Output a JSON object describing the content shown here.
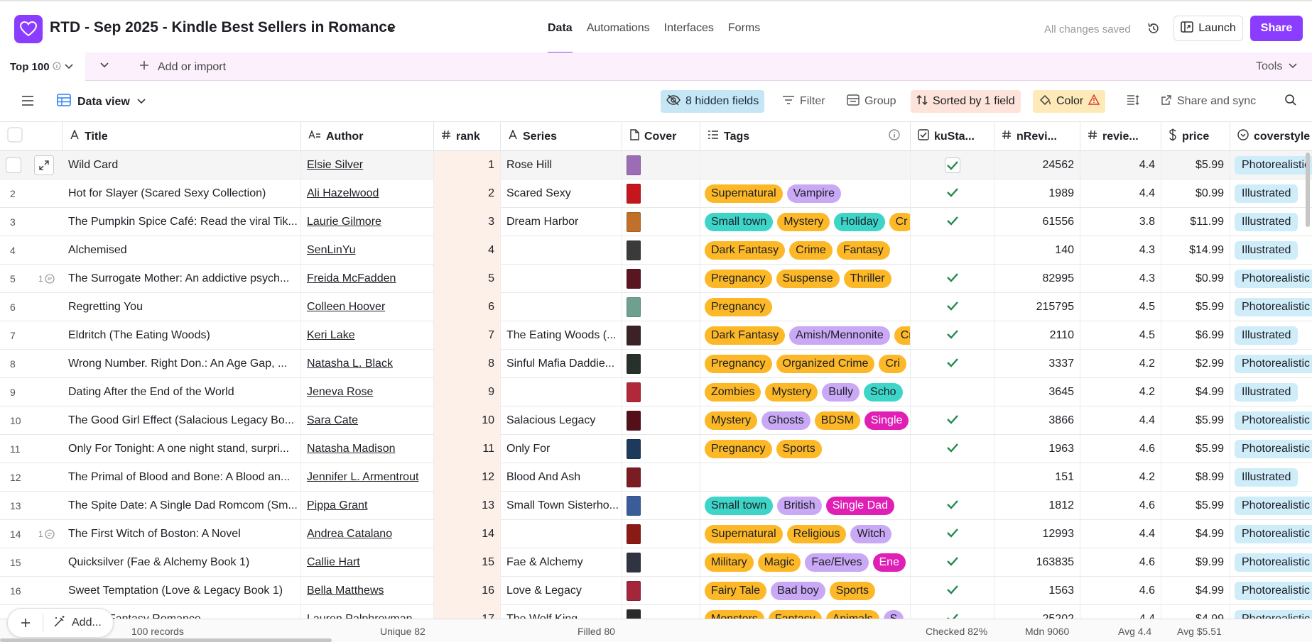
{
  "header": {
    "title": "RTD - Sep 2025 - Kindle Best Sellers in Romance",
    "nav": [
      "Data",
      "Automations",
      "Interfaces",
      "Forms"
    ],
    "saved": "All changes saved",
    "launch": "Launch",
    "share": "Share"
  },
  "tablebar": {
    "active_tab": "Top 100",
    "add_import": "Add or import",
    "tools": "Tools"
  },
  "viewbar": {
    "view_name": "Data view",
    "hidden": "8 hidden fields",
    "filter": "Filter",
    "group": "Group",
    "sorted": "Sorted by 1 field",
    "color": "Color",
    "share_sync": "Share and sync"
  },
  "columns": {
    "title": "Title",
    "author": "Author",
    "rank": "rank",
    "series": "Series",
    "cover": "Cover",
    "tags": "Tags",
    "ku": "kuSta...",
    "nrev": "nRevi...",
    "rev": "revie...",
    "price": "price",
    "style": "coverstyle"
  },
  "tag_colors": {
    "Supernatural": "#fcb826",
    "Vampire": "#c9a8f5",
    "Small town": "#3ed5c9",
    "Mystery": "#fcb826",
    "Holiday": "#3ed5c9",
    "Dark Fantasy": "#fcb826",
    "Crime": "#fcb826",
    "Fantasy": "#fcb826",
    "Pregnancy": "#fcb826",
    "Suspense": "#fcb826",
    "Thriller": "#fcb826",
    "Amish/Mennonite": "#c9a8f5",
    "Organized Crime": "#fcb826",
    "Cri": "#fcb826",
    "Zombies": "#fcb826",
    "Bully": "#c9a8f5",
    "Scho": "#3ed5c9",
    "Ghosts": "#c9a8f5",
    "BDSM": "#fcb826",
    "Single": "#e01fb5",
    "Sports": "#fcb826",
    "British": "#c9a8f5",
    "Single Dad": "#e01fb5",
    "Religious": "#fcb826",
    "Witch": "#c9a8f5",
    "Military": "#fcb826",
    "Magic": "#fcb826",
    "Fae/Elves": "#c9a8f5",
    "Ene": "#e01fb5",
    "Fairy Tale": "#fcb826",
    "Bad boy": "#c9a8f5",
    "Monsters": "#fcb826",
    "Animals": "#fcb826",
    "S": "#c9a8f5",
    "Cr": "#fcb826"
  },
  "rows": [
    {
      "num": "",
      "title": "Wild Card",
      "author": "Elsie Silver",
      "rank": "1",
      "series": "Rose Hill",
      "cover": "#9c6cb4",
      "tags": [],
      "ku": true,
      "ku_box": true,
      "nrev": "24562",
      "rev": "4.4",
      "price": "$5.99",
      "style": "Photorealistic",
      "comment": ""
    },
    {
      "num": "2",
      "title": "Hot for Slayer (Scared Sexy Collection)",
      "author": "Ali Hazelwood",
      "rank": "2",
      "series": "Scared Sexy",
      "cover": "#c4161c",
      "tags": [
        "Supernatural",
        "Vampire"
      ],
      "ku": true,
      "nrev": "1989",
      "rev": "4.4",
      "price": "$0.99",
      "style": "Illustrated",
      "comment": ""
    },
    {
      "num": "3",
      "title": "The Pumpkin Spice Café: Read the viral Tik...",
      "author": "Laurie Gilmore",
      "rank": "3",
      "series": "Dream Harbor",
      "cover": "#c0702a",
      "tags": [
        "Small town",
        "Mystery",
        "Holiday",
        "Cr"
      ],
      "ku": true,
      "nrev": "61556",
      "rev": "3.8",
      "price": "$11.99",
      "style": "Illustrated",
      "comment": ""
    },
    {
      "num": "4",
      "title": "Alchemised",
      "author": "SenLinYu",
      "rank": "4",
      "series": "",
      "cover": "#3a3a3a",
      "tags": [
        "Dark Fantasy",
        "Crime",
        "Fantasy"
      ],
      "ku": false,
      "nrev": "140",
      "rev": "4.3",
      "price": "$14.99",
      "style": "Illustrated",
      "comment": ""
    },
    {
      "num": "5",
      "title": "The Surrogate Mother: An addictive psych...",
      "author": "Freida McFadden",
      "rank": "5",
      "series": "",
      "cover": "#5a1620",
      "tags": [
        "Pregnancy",
        "Suspense",
        "Thriller"
      ],
      "ku": true,
      "nrev": "82995",
      "rev": "4.3",
      "price": "$0.99",
      "style": "Photorealistic",
      "comment": "1"
    },
    {
      "num": "6",
      "title": "Regretting You",
      "author": "Colleen Hoover",
      "rank": "6",
      "series": "",
      "cover": "#6fa08f",
      "tags": [
        "Pregnancy"
      ],
      "ku": true,
      "nrev": "215795",
      "rev": "4.5",
      "price": "$5.99",
      "style": "Photorealistic",
      "comment": ""
    },
    {
      "num": "7",
      "title": "Eldritch (The Eating Woods)",
      "author": "Keri Lake",
      "rank": "7",
      "series": "The Eating Woods (...",
      "cover": "#3b2226",
      "tags": [
        "Dark Fantasy",
        "Amish/Mennonite",
        "Cr"
      ],
      "ku": true,
      "nrev": "2110",
      "rev": "4.5",
      "price": "$6.99",
      "style": "Illustrated",
      "comment": ""
    },
    {
      "num": "8",
      "title": "Wrong Number. Right Don.: An Age Gap, ...",
      "author": "Natasha L. Black",
      "rank": "8",
      "series": "Sinful Mafia Daddie...",
      "cover": "#27312a",
      "tags": [
        "Pregnancy",
        "Organized Crime",
        "Cri"
      ],
      "ku": true,
      "nrev": "3337",
      "rev": "4.2",
      "price": "$2.99",
      "style": "Photorealistic",
      "comment": ""
    },
    {
      "num": "9",
      "title": "Dating After the End of the World",
      "author": "Jeneva Rose",
      "rank": "9",
      "series": "",
      "cover": "#b0283a",
      "tags": [
        "Zombies",
        "Mystery",
        "Bully",
        "Scho"
      ],
      "ku": false,
      "nrev": "3645",
      "rev": "4.2",
      "price": "$4.99",
      "style": "Illustrated",
      "comment": ""
    },
    {
      "num": "10",
      "title": "The Good Girl Effect (Salacious Legacy Bo...",
      "author": "Sara Cate",
      "rank": "10",
      "series": "Salacious Legacy",
      "cover": "#541018",
      "tags": [
        "Mystery",
        "Ghosts",
        "BDSM",
        "Single"
      ],
      "ku": true,
      "nrev": "3866",
      "rev": "4.4",
      "price": "$5.99",
      "style": "Photorealistic",
      "comment": ""
    },
    {
      "num": "11",
      "title": "Only For Tonight: A one night stand, surpri...",
      "author": "Natasha Madison",
      "rank": "11",
      "series": "Only For",
      "cover": "#1e3a5a",
      "tags": [
        "Pregnancy",
        "Sports"
      ],
      "ku": true,
      "nrev": "1963",
      "rev": "4.6",
      "price": "$5.99",
      "style": "Photorealistic",
      "comment": ""
    },
    {
      "num": "12",
      "title": "The Primal of Blood and Bone: A Blood an...",
      "author": "Jennifer L. Armentrout",
      "rank": "12",
      "series": "Blood And Ash",
      "cover": "#7a1c22",
      "tags": [],
      "ku": false,
      "nrev": "151",
      "rev": "4.2",
      "price": "$8.99",
      "style": "Illustrated",
      "comment": ""
    },
    {
      "num": "13",
      "title": "The Spite Date: A Single Dad Romcom (Sm...",
      "author": "Pippa Grant",
      "rank": "13",
      "series": "Small Town Sisterho...",
      "cover": "#3a5d9a",
      "tags": [
        "Small town",
        "British",
        "Single Dad"
      ],
      "ku": true,
      "nrev": "1812",
      "rev": "4.6",
      "price": "$5.99",
      "style": "Photorealistic",
      "comment": ""
    },
    {
      "num": "14",
      "title": "The First Witch of Boston: A Novel",
      "author": "Andrea Catalano",
      "rank": "14",
      "series": "",
      "cover": "#8a1a14",
      "tags": [
        "Supernatural",
        "Religious",
        "Witch"
      ],
      "ku": true,
      "nrev": "12993",
      "rev": "4.4",
      "price": "$4.99",
      "style": "Photorealistic",
      "comment": "1"
    },
    {
      "num": "15",
      "title": "Quicksilver (Fae & Alchemy Book 1)",
      "author": "Callie Hart",
      "rank": "15",
      "series": "Fae & Alchemy",
      "cover": "#2f3440",
      "tags": [
        "Military",
        "Magic",
        "Fae/Elves",
        "Ene"
      ],
      "ku": true,
      "nrev": "163835",
      "rev": "4.6",
      "price": "$9.99",
      "style": "Photorealistic",
      "comment": ""
    },
    {
      "num": "16",
      "title": "Sweet Temptation (Love & Legacy Book 1)",
      "author": "Bella Matthews",
      "rank": "16",
      "series": "Love & Legacy",
      "cover": "#a3263a",
      "tags": [
        "Fairy Tale",
        "Bad boy",
        "Sports"
      ],
      "ku": true,
      "nrev": "1563",
      "rev": "4.6",
      "price": "$4.99",
      "style": "Photorealistic",
      "comment": ""
    },
    {
      "num": "17",
      "title": "...ing: A Fantasy Romance",
      "author": "Lauren Palphreyman",
      "rank": "17",
      "series": "The Wolf King",
      "cover": "#2a2a2a",
      "tags": [
        "Monsters",
        "Fantasy",
        "Animals",
        "S"
      ],
      "ku": true,
      "nrev": "25202",
      "rev": "4.4",
      "price": "$4.99",
      "style": "Photorealistic",
      "comment": ""
    }
  ],
  "footer": {
    "add_label": "Add...",
    "records": "100 records",
    "unique": "Unique 82",
    "filled": "Filled 80",
    "checked": "Checked 82%",
    "median": "Mdn 9060",
    "avg_rev": "Avg 4.4",
    "avg_price": "Avg $5.51"
  }
}
